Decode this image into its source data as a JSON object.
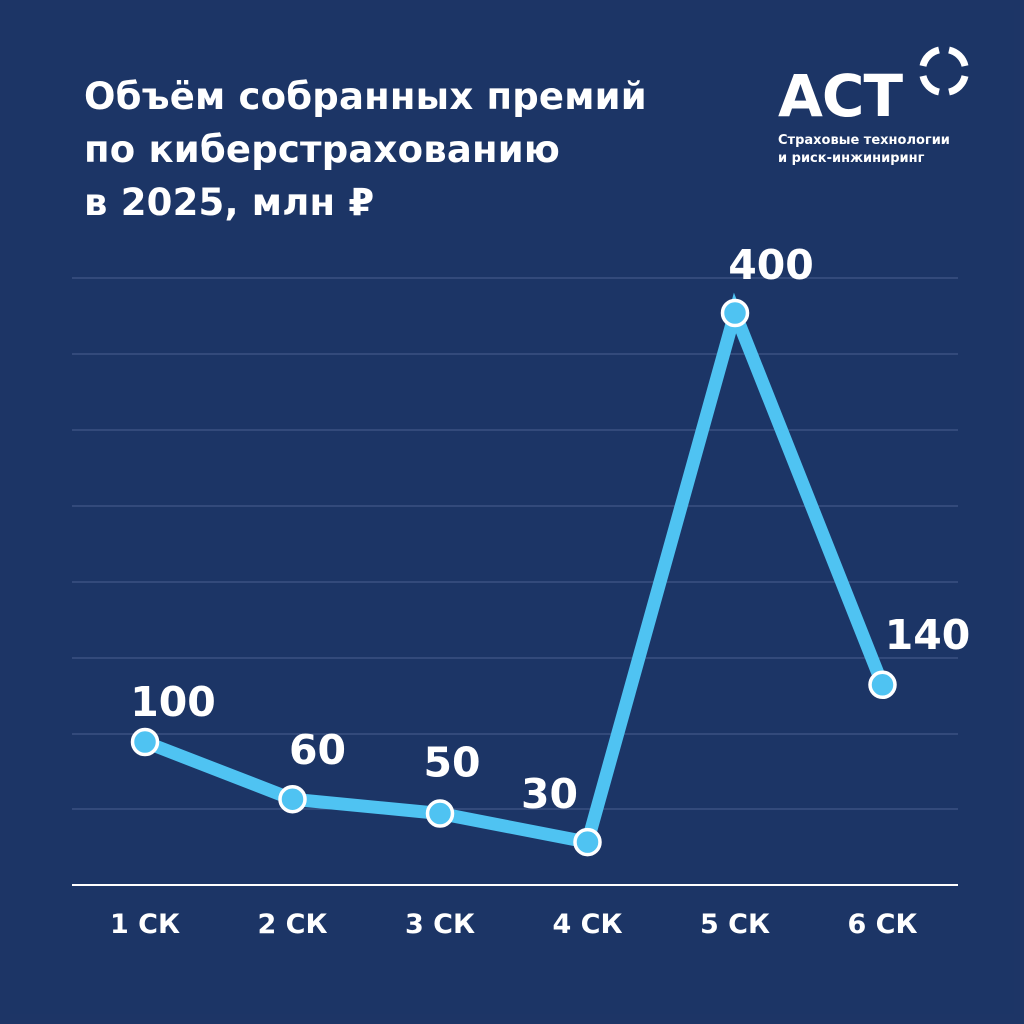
{
  "header": {
    "title_lines": [
      "Объём собранных премий",
      "по киберстрахованию",
      "в 2025, млн ₽"
    ]
  },
  "brand": {
    "name": "АСТ",
    "subtitle_lines": [
      "Страховые технологии",
      "и риск-инжиниринг"
    ]
  },
  "colors": {
    "background": "#1c3566",
    "line": "#4fc3f2",
    "grid": "#4a6090",
    "axis": "#ffffff",
    "text": "#ffffff"
  },
  "chart_data": {
    "type": "line",
    "title": "Объём собранных премий по киберстрахованию в 2025, млн ₽",
    "categories": [
      "1 СК",
      "2 СК",
      "3 СК",
      "4 СК",
      "5 СК",
      "6 СК"
    ],
    "values": [
      100,
      60,
      50,
      30,
      400,
      140
    ],
    "data_labels": [
      "100",
      "60",
      "50",
      "30",
      "400",
      "140"
    ],
    "xlabel": "",
    "ylabel": "",
    "ylim": [
      0,
      420
    ],
    "grid": true,
    "legend": "none"
  }
}
